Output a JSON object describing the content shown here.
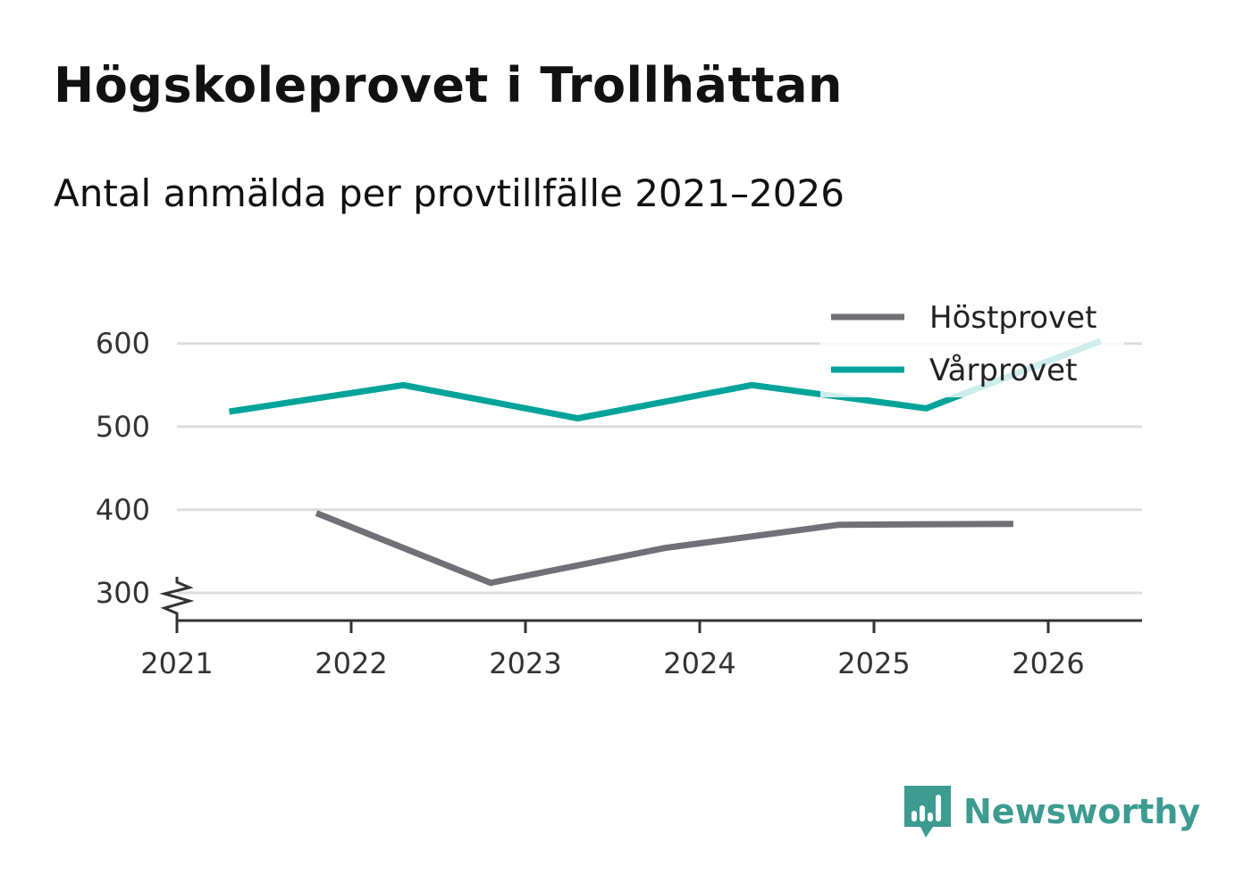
{
  "title": "Högskoleprovet i Trollhättan",
  "subtitle": "Antal anmälda per provtillfälle 2021–2026",
  "brand": {
    "name": "Newsworthy",
    "color": "#3d9b92",
    "icon": "newsworthy-logo-icon"
  },
  "colors": {
    "hostprovet": "#727077",
    "varprovet": "#00a39a",
    "grid": "#dddddd",
    "axis": "#333333"
  },
  "chart_data": {
    "type": "line",
    "title": "Högskoleprovet i Trollhättan",
    "subtitle": "Antal anmälda per provtillfälle 2021–2026",
    "xlabel": "",
    "ylabel": "",
    "xlim": [
      2021,
      2026.55
    ],
    "ylim": [
      266,
      620
    ],
    "y_ticks": [
      300,
      400,
      500,
      600
    ],
    "x_ticks": [
      2021,
      2022,
      2023,
      2024,
      2025,
      2026
    ],
    "x_tick_labels": [
      "2021",
      "2022",
      "2023",
      "2024",
      "2025",
      "2026"
    ],
    "y_tick_labels": [
      "300",
      "400",
      "500",
      "600"
    ],
    "grid": true,
    "axis_break": true,
    "legend_position": "top-right",
    "series": [
      {
        "name": "Höstprovet",
        "x": [
          2021.8,
          2022.8,
          2023.8,
          2024.8,
          2025.8
        ],
        "values": [
          396,
          312,
          354,
          382,
          383
        ]
      },
      {
        "name": "Vårprovet",
        "x": [
          2021.3,
          2022.3,
          2023.3,
          2024.3,
          2025.3,
          2026.3
        ],
        "values": [
          518,
          550,
          510,
          550,
          522,
          603
        ]
      }
    ]
  }
}
